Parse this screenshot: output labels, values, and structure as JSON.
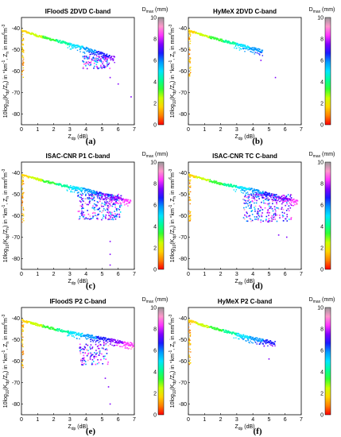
{
  "chart_data": [
    {
      "type": "scatter",
      "title": "IFloodS 2DVD C-band",
      "panel_label": "(a)",
      "xlabel": "Z_dp (dB)",
      "ylabel": "10log10(K_dp/Z_h) in °km⁻¹, Z_h in mm⁶m⁻³",
      "colorbar_label": "D_max (mm)",
      "xlim": [
        0,
        7
      ],
      "ylim": [
        -85,
        -35
      ],
      "xticks": [
        0,
        1,
        2,
        3,
        4,
        5,
        6,
        7
      ],
      "yticks": [
        -40,
        -50,
        -60,
        -70,
        -80
      ],
      "clim": [
        0,
        10
      ],
      "cticks": [
        0,
        2,
        4,
        6,
        8,
        10
      ],
      "trend": {
        "x": [
          0,
          1,
          2,
          3,
          4,
          5
        ],
        "y": [
          -41,
          -43.5,
          -45.5,
          -47.5,
          -49.5,
          -52
        ],
        "x_end": 5.8
      },
      "scatter_cluster": {
        "x_range": [
          3.8,
          5.5
        ],
        "y_range": [
          -53,
          -59
        ],
        "density": "medium"
      },
      "outliers": [
        [
          5.5,
          -63
        ],
        [
          6,
          -66
        ],
        [
          6.8,
          -72
        ]
      ]
    },
    {
      "type": "scatter",
      "title": "HyMeX 2DVD C-band",
      "panel_label": "(b)",
      "xlabel": "Z_dp (dB)",
      "ylabel": "10log10(K_dp/Z_h) in °km⁻¹, Z_h in mm⁶m⁻³",
      "colorbar_label": "D_max (mm)",
      "xlim": [
        0,
        7
      ],
      "ylim": [
        -85,
        -35
      ],
      "xticks": [
        0,
        1,
        2,
        3,
        4,
        5,
        6,
        7
      ],
      "yticks": [
        -40,
        -50,
        -60,
        -70,
        -80
      ],
      "clim": [
        0,
        10
      ],
      "cticks": [
        0,
        2,
        4,
        6,
        8,
        10
      ],
      "trend": {
        "x": [
          0,
          1,
          2,
          3,
          4
        ],
        "y": [
          -41,
          -43.5,
          -45.5,
          -47.5,
          -49.5
        ],
        "x_end": 4.6
      },
      "scatter_cluster": null,
      "outliers": [
        [
          4.5,
          -55
        ],
        [
          5.4,
          -63
        ]
      ]
    },
    {
      "type": "scatter",
      "title": "ISAC-CNR P1 C-band",
      "panel_label": "(c)",
      "xlabel": "Z_dp (dB)",
      "ylabel": "10log10(K_dp/Z_h) in °km⁻¹, Z_h in mm⁶m⁻³",
      "colorbar_label": "D_max (mm)",
      "xlim": [
        0,
        7
      ],
      "ylim": [
        -85,
        -35
      ],
      "xticks": [
        0,
        1,
        2,
        3,
        4,
        5,
        6,
        7
      ],
      "yticks": [
        -40,
        -50,
        -60,
        -70,
        -80
      ],
      "clim": [
        0,
        10
      ],
      "cticks": [
        0,
        2,
        4,
        6,
        8,
        10
      ],
      "trend": {
        "x": [
          0,
          1,
          2,
          3,
          4,
          5,
          6
        ],
        "y": [
          -41,
          -43,
          -45,
          -46.5,
          -48,
          -50,
          -52
        ],
        "x_end": 6.8
      },
      "scatter_cluster": {
        "x_range": [
          3.5,
          6.2
        ],
        "y_range": [
          -50,
          -62
        ],
        "density": "high"
      },
      "outliers": [
        [
          5.5,
          -72
        ],
        [
          5.5,
          -78
        ],
        [
          5.5,
          -83
        ]
      ]
    },
    {
      "type": "scatter",
      "title": "ISAC-CNR TC C-band",
      "panel_label": "(d)",
      "xlabel": "Z_dp (dB)",
      "ylabel": "10log10(K_dp/Z_h) in °km⁻¹, Z_h in mm⁶m⁻³",
      "colorbar_label": "D_max (mm)",
      "xlim": [
        0,
        7
      ],
      "ylim": [
        -85,
        -35
      ],
      "xticks": [
        0,
        1,
        2,
        3,
        4,
        5,
        6,
        7
      ],
      "yticks": [
        -40,
        -50,
        -60,
        -70,
        -80
      ],
      "clim": [
        0,
        10
      ],
      "cticks": [
        0,
        2,
        4,
        6,
        8,
        10
      ],
      "trend": {
        "x": [
          0,
          1,
          2,
          3,
          4,
          5,
          6
        ],
        "y": [
          -41,
          -43,
          -45,
          -46.5,
          -48,
          -50,
          -52
        ],
        "x_end": 6.8
      },
      "scatter_cluster": {
        "x_range": [
          3.4,
          6.4
        ],
        "y_range": [
          -50,
          -63
        ],
        "density": "high"
      },
      "outliers": [
        [
          5.6,
          -69
        ],
        [
          6.1,
          -70
        ]
      ]
    },
    {
      "type": "scatter",
      "title": "IFloodS P2 C-band",
      "panel_label": "(e)",
      "xlabel": "Z_dp (dB)",
      "ylabel": "10log10(K_dp/Z_h) in °km⁻¹, Z_h in mm⁶m⁻³",
      "colorbar_label": "D_max (mm)",
      "xlim": [
        0,
        7
      ],
      "ylim": [
        -85,
        -35
      ],
      "xticks": [
        0,
        1,
        2,
        3,
        4,
        5,
        6,
        7
      ],
      "yticks": [
        -40,
        -50,
        -60,
        -70,
        -80
      ],
      "clim": [
        0,
        10
      ],
      "cticks": [
        0,
        2,
        4,
        6,
        8,
        10
      ],
      "trend": {
        "x": [
          0,
          1,
          2,
          3,
          4,
          5,
          6,
          7
        ],
        "y": [
          -41,
          -43,
          -45,
          -46.5,
          -48,
          -49.5,
          -51,
          -52.5
        ],
        "x_end": 7
      },
      "scatter_cluster": {
        "x_range": [
          3.6,
          5.4
        ],
        "y_range": [
          -52,
          -62
        ],
        "density": "medium"
      },
      "outliers": [
        [
          5.2,
          -68
        ],
        [
          5.4,
          -72
        ],
        [
          5.5,
          -80
        ]
      ]
    },
    {
      "type": "scatter",
      "title": "HyMeX P2 C-band",
      "panel_label": "(f)",
      "xlabel": "Z_dp (dB)",
      "ylabel": "10log10(K_dp/Z_h) in °km⁻¹, Z_h in mm⁶m⁻³",
      "colorbar_label": "D_max (mm)",
      "xlim": [
        0,
        7
      ],
      "ylim": [
        -85,
        -35
      ],
      "xticks": [
        0,
        1,
        2,
        3,
        4,
        5,
        6,
        7
      ],
      "yticks": [
        -40,
        -50,
        -60,
        -70,
        -80
      ],
      "clim": [
        0,
        10
      ],
      "cticks": [
        0,
        2,
        4,
        6,
        8,
        10
      ],
      "trend": {
        "x": [
          0,
          1,
          2,
          3,
          4,
          5
        ],
        "y": [
          -41,
          -43.5,
          -45.5,
          -47.5,
          -49.5,
          -51
        ],
        "x_end": 5.4
      },
      "scatter_cluster": null,
      "outliers": [
        [
          4.7,
          -53
        ],
        [
          5,
          -59
        ]
      ]
    }
  ],
  "colorbar": {
    "colors": [
      "#ff0000",
      "#ff8000",
      "#ffd400",
      "#ccff00",
      "#33ff33",
      "#00ff99",
      "#00e5ff",
      "#0099ff",
      "#1a1aff",
      "#8000ff",
      "#ff33ff",
      "#ff99cc",
      "#999999"
    ]
  }
}
